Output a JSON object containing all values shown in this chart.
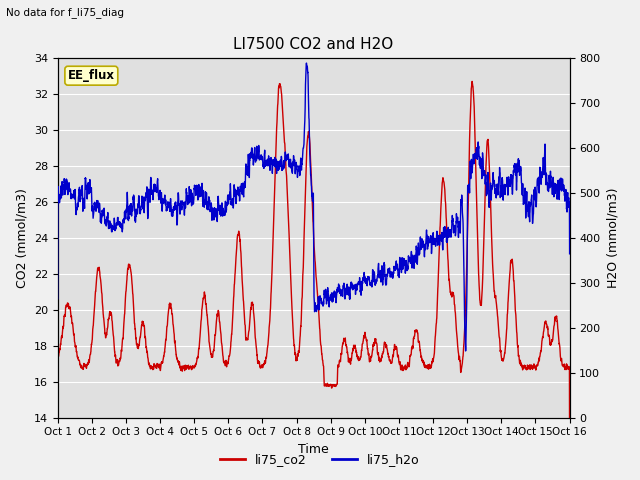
{
  "title": "LI7500 CO2 and H2O",
  "top_left_text": "No data for f_li75_diag",
  "annotation_box": "EE_flux",
  "xlabel": "Time",
  "ylabel_left": "CO2 (mmol/m3)",
  "ylabel_right": "H2O (mmol/m3)",
  "ylim_left": [
    14,
    34
  ],
  "ylim_right": [
    0,
    800
  ],
  "yticks_left": [
    14,
    16,
    18,
    20,
    22,
    24,
    26,
    28,
    30,
    32,
    34
  ],
  "yticks_right": [
    0,
    100,
    200,
    300,
    400,
    500,
    600,
    700,
    800
  ],
  "xtick_labels": [
    "Oct 1",
    "Oct 2",
    "Oct 3",
    "Oct 4",
    "Oct 5",
    "Oct 6",
    "Oct 7",
    "Oct 8",
    "Oct 9",
    "Oct 10",
    "Oct 11",
    "Oct 12",
    "Oct 13",
    "Oct 14",
    "Oct 15",
    "Oct 16"
  ],
  "co2_color": "#cc0000",
  "h2o_color": "#0000cc",
  "plot_bg_color": "#e0e0e0",
  "fig_bg_color": "#f0f0f0",
  "legend_co2": "li75_co2",
  "legend_h2o": "li75_h2o",
  "line_width": 1.0,
  "annotation_bg": "#ffffcc",
  "annotation_border": "#bbaa00"
}
